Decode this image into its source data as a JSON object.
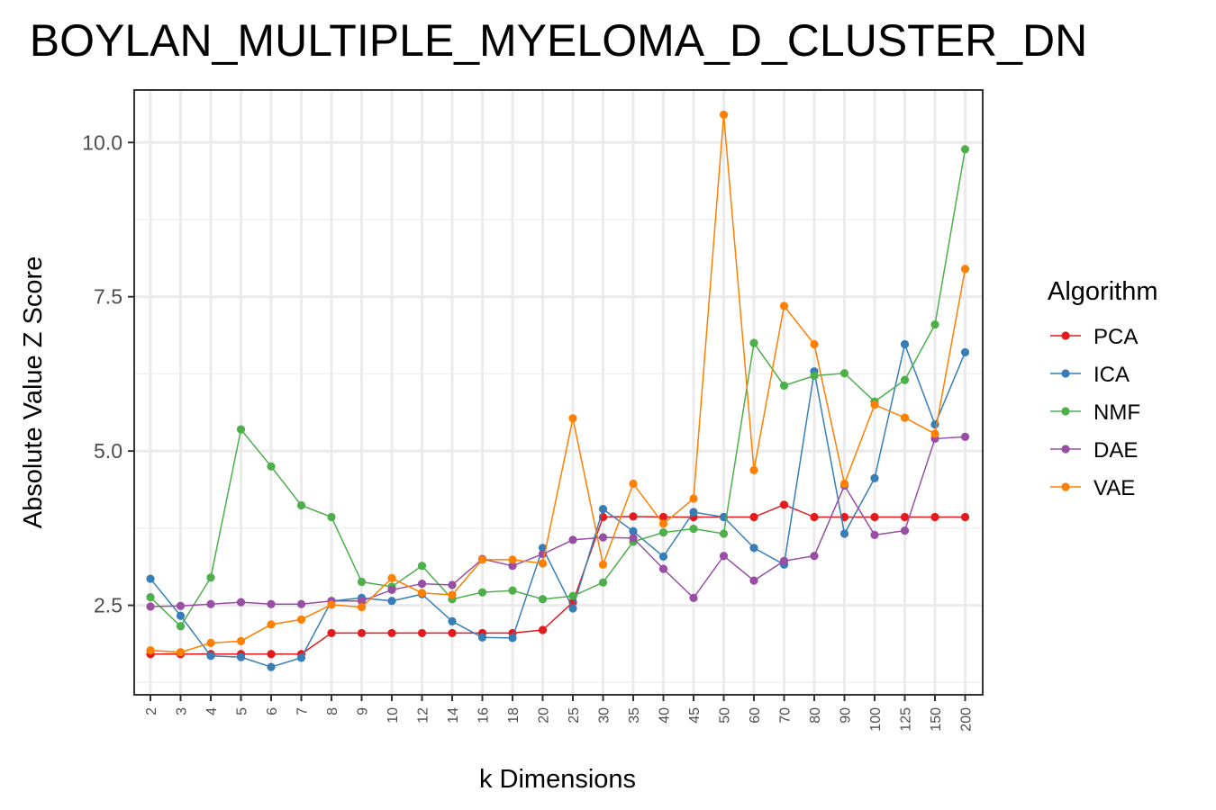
{
  "chart_data": {
    "type": "line",
    "title": "BOYLAN_MULTIPLE_MYELOMA_D_CLUSTER_DN",
    "xlabel": "k Dimensions",
    "ylabel": "Absolute Value Z Score",
    "categories": [
      "2",
      "3",
      "4",
      "5",
      "6",
      "7",
      "8",
      "9",
      "10",
      "12",
      "14",
      "16",
      "18",
      "20",
      "25",
      "30",
      "35",
      "40",
      "45",
      "50",
      "60",
      "70",
      "80",
      "90",
      "100",
      "125",
      "150",
      "200"
    ],
    "y_ticks": [
      "2.5",
      "5.0",
      "7.5",
      "10.0"
    ],
    "y_tick_values": [
      2.5,
      5.0,
      7.5,
      10.0
    ],
    "ylim": [
      1.05,
      10.85
    ],
    "grid": true,
    "legend": {
      "title": "Algorithm",
      "position": "right"
    },
    "series": [
      {
        "name": "PCA",
        "color": "#e41a1c",
        "values": [
          1.71,
          1.71,
          1.71,
          1.71,
          1.71,
          1.71,
          2.05,
          2.05,
          2.05,
          2.05,
          2.05,
          2.05,
          2.05,
          2.1,
          2.55,
          3.93,
          3.94,
          3.93,
          3.93,
          3.93,
          3.93,
          4.13,
          3.93,
          3.93,
          3.93,
          3.93,
          3.93,
          3.93
        ]
      },
      {
        "name": "ICA",
        "color": "#377eb8",
        "values": [
          2.93,
          2.33,
          1.68,
          1.66,
          1.5,
          1.65,
          2.57,
          2.62,
          2.57,
          2.68,
          2.24,
          1.98,
          1.97,
          3.43,
          2.45,
          4.06,
          3.7,
          3.29,
          4.01,
          3.93,
          3.43,
          3.16,
          6.29,
          3.66,
          4.56,
          6.73,
          5.43,
          6.6
        ]
      },
      {
        "name": "NMF",
        "color": "#4daf4a",
        "values": [
          2.63,
          2.16,
          2.95,
          5.35,
          4.75,
          4.12,
          3.93,
          2.88,
          2.8,
          3.14,
          2.6,
          2.71,
          2.74,
          2.6,
          2.65,
          2.87,
          3.53,
          3.68,
          3.74,
          3.66,
          6.75,
          6.06,
          6.22,
          6.26,
          5.8,
          6.15,
          7.05,
          9.89
        ]
      },
      {
        "name": "DAE",
        "color": "#984ea3",
        "values": [
          2.48,
          2.49,
          2.52,
          2.55,
          2.52,
          2.52,
          2.57,
          2.57,
          2.75,
          2.85,
          2.83,
          3.25,
          3.14,
          3.33,
          3.56,
          3.6,
          3.59,
          3.09,
          2.62,
          3.3,
          2.9,
          3.22,
          3.3,
          4.44,
          3.64,
          3.71,
          5.2,
          5.23
        ]
      },
      {
        "name": "VAE",
        "color": "#ff7f00",
        "values": [
          1.77,
          1.74,
          1.89,
          1.92,
          2.19,
          2.27,
          2.51,
          2.47,
          2.94,
          2.7,
          2.67,
          3.24,
          3.24,
          3.18,
          5.53,
          3.16,
          4.47,
          3.82,
          4.23,
          10.45,
          4.69,
          7.35,
          6.73,
          4.47,
          5.75,
          5.54,
          5.28,
          7.95
        ]
      }
    ]
  }
}
